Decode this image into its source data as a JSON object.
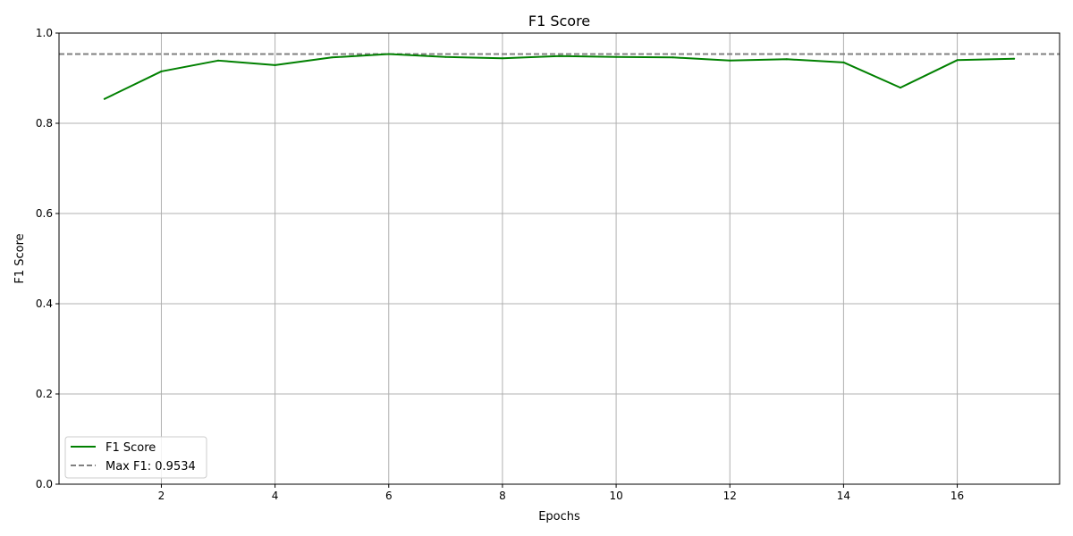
{
  "chart_data": {
    "type": "line",
    "title": "F1 Score",
    "xlabel": "Epochs",
    "ylabel": "F1 Score",
    "xlim": [
      0.2,
      17.8
    ],
    "ylim": [
      0.0,
      1.0
    ],
    "xticks": [
      2,
      4,
      6,
      8,
      10,
      12,
      14,
      16
    ],
    "yticks": [
      0.0,
      0.2,
      0.4,
      0.6,
      0.8,
      1.0
    ],
    "grid": true,
    "legend_position": "lower-left",
    "series": [
      {
        "name": "F1 Score",
        "color": "#008000",
        "style": "solid",
        "x": [
          1,
          2,
          3,
          4,
          5,
          6,
          7,
          8,
          9,
          10,
          11,
          12,
          13,
          14,
          15,
          16,
          17
        ],
        "y": [
          0.854,
          0.915,
          0.939,
          0.929,
          0.946,
          0.9534,
          0.947,
          0.944,
          0.949,
          0.947,
          0.946,
          0.939,
          0.942,
          0.935,
          0.879,
          0.94,
          0.943
        ]
      }
    ],
    "reference_lines": [
      {
        "name": "Max F1: 0.9534",
        "value": 0.9534,
        "color": "#808080",
        "style": "dashed"
      }
    ]
  }
}
